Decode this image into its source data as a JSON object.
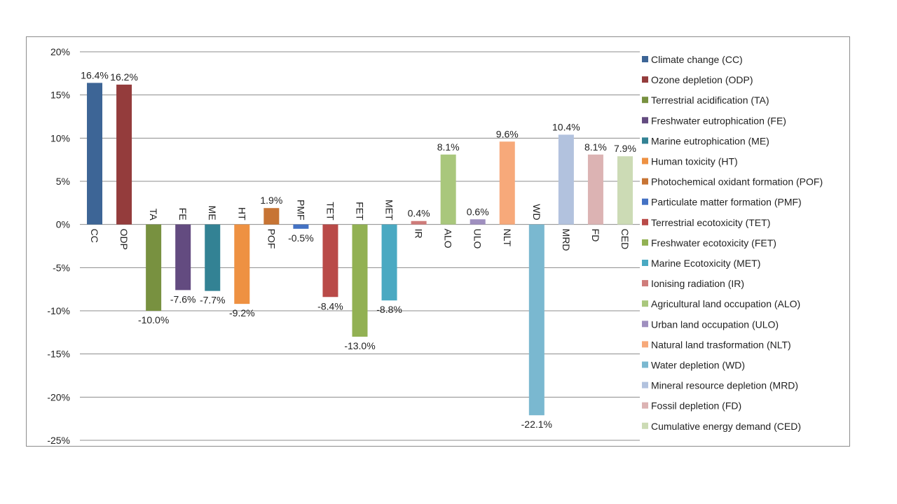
{
  "chart_data": {
    "type": "bar",
    "title": "",
    "xlabel": "",
    "ylabel": "",
    "ylim": [
      -25,
      20
    ],
    "y_ticks": [
      20,
      15,
      10,
      5,
      0,
      -5,
      -10,
      -15,
      -20,
      -25
    ],
    "y_tick_labels": [
      "20%",
      "15%",
      "10%",
      "5%",
      "0%",
      "-5%",
      "-10%",
      "-15%",
      "-20%",
      "-25%"
    ],
    "grid": "horizontal",
    "legend_position": "right",
    "categories": [
      "CC",
      "ODP",
      "TA",
      "FE",
      "ME",
      "HT",
      "POF",
      "PMF",
      "TET",
      "FET",
      "MET",
      "IR",
      "ALO",
      "ULO",
      "NLT",
      "WD",
      "MRD",
      "FD",
      "CED"
    ],
    "values": [
      16.4,
      16.2,
      -10.0,
      -7.6,
      -7.7,
      -9.2,
      1.9,
      -0.5,
      -8.4,
      -13.0,
      -8.8,
      0.4,
      8.1,
      0.6,
      9.6,
      -22.1,
      10.4,
      8.1,
      7.9
    ],
    "data_labels": [
      "16.4%",
      "16.2%",
      "-10.0%",
      "-7.6%",
      "-7.7%",
      "-9.2%",
      "1.9%",
      "-0.5%",
      "-8.4%",
      "-13.0%",
      "-8.8%",
      "0.4%",
      "8.1%",
      "0.6%",
      "9.6%",
      "-22.1%",
      "10.4%",
      "8.1%",
      "7.9%"
    ],
    "colors": [
      "#3d6596",
      "#943c3c",
      "#789140",
      "#634b80",
      "#338294",
      "#ee9142",
      "#c77434",
      "#4472c4",
      "#b94a48",
      "#92b153",
      "#4aa9c2",
      "#cf7c7a",
      "#a9c77c",
      "#9f8fbf",
      "#f7a97a",
      "#7ab8d0",
      "#b2c2de",
      "#dcb3b3",
      "#ccdbb5"
    ],
    "legend": [
      "Climate change (CC)",
      "Ozone depletion (ODP)",
      "Terrestrial acidification (TA)",
      "Freshwater eutrophication (FE)",
      "Marine eutrophication (ME)",
      "Human toxicity (HT)",
      "Photochemical oxidant formation (POF)",
      "Particulate matter formation (PMF)",
      "Terrestrial ecotoxicity (TET)",
      "Freshwater ecotoxicity (FET)",
      "Marine Ecotoxicity (MET)",
      "Ionising radiation (IR)",
      "Agricultural land occupation (ALO)",
      "Urban land occupation (ULO)",
      "Natural land trasformation (NLT)",
      "Water depletion (WD)",
      "Mineral resource depletion (MRD)",
      "Fossil depletion (FD)",
      "Cumulative energy demand (CED)"
    ]
  }
}
